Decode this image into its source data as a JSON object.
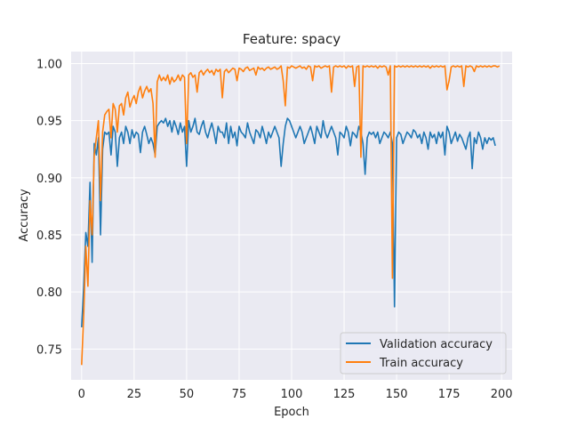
{
  "chart_data": {
    "type": "line",
    "title": "Feature: spacy",
    "xlabel": "Epoch",
    "ylabel": "Accuracy",
    "xlim": [
      -5,
      205
    ],
    "ylim": [
      0.723,
      1.0105
    ],
    "x_ticks": [
      0,
      25,
      50,
      75,
      100,
      125,
      150,
      175,
      200
    ],
    "y_ticks": [
      0.75,
      0.8,
      0.85,
      0.9,
      0.95,
      1.0
    ],
    "x_tick_labels": [
      "0",
      "25",
      "50",
      "75",
      "100",
      "125",
      "150",
      "175",
      "200"
    ],
    "y_tick_labels": [
      "0.75",
      "0.80",
      "0.85",
      "0.90",
      "0.95",
      "1.00"
    ],
    "grid": true,
    "background": "#eaeaf2",
    "legend_position": "lower-right",
    "series": [
      {
        "name": "Validation accuracy",
        "color": "#1f77b4",
        "y": [
          0.769,
          0.805,
          0.852,
          0.84,
          0.896,
          0.826,
          0.93,
          0.92,
          0.935,
          0.85,
          0.925,
          0.94,
          0.938,
          0.94,
          0.92,
          0.945,
          0.94,
          0.91,
          0.935,
          0.94,
          0.93,
          0.945,
          0.94,
          0.93,
          0.942,
          0.935,
          0.94,
          0.938,
          0.922,
          0.94,
          0.945,
          0.938,
          0.93,
          0.935,
          0.93,
          0.92,
          0.945,
          0.948,
          0.95,
          0.948,
          0.952,
          0.945,
          0.95,
          0.94,
          0.95,
          0.945,
          0.938,
          0.948,
          0.94,
          0.945,
          0.91,
          0.95,
          0.94,
          0.945,
          0.952,
          0.94,
          0.938,
          0.945,
          0.95,
          0.94,
          0.935,
          0.942,
          0.948,
          0.94,
          0.93,
          0.945,
          0.94,
          0.94,
          0.935,
          0.948,
          0.93,
          0.945,
          0.935,
          0.94,
          0.928,
          0.945,
          0.94,
          0.938,
          0.935,
          0.948,
          0.94,
          0.935,
          0.93,
          0.942,
          0.94,
          0.935,
          0.945,
          0.938,
          0.93,
          0.94,
          0.935,
          0.94,
          0.945,
          0.94,
          0.935,
          0.91,
          0.93,
          0.945,
          0.952,
          0.95,
          0.945,
          0.94,
          0.935,
          0.94,
          0.945,
          0.94,
          0.93,
          0.935,
          0.94,
          0.945,
          0.938,
          0.93,
          0.945,
          0.94,
          0.935,
          0.95,
          0.94,
          0.935,
          0.94,
          0.945,
          0.94,
          0.935,
          0.92,
          0.94,
          0.938,
          0.935,
          0.945,
          0.94,
          0.928,
          0.94,
          0.938,
          0.935,
          0.945,
          0.94,
          0.93,
          0.903,
          0.935,
          0.94,
          0.938,
          0.94,
          0.935,
          0.94,
          0.93,
          0.935,
          0.94,
          0.938,
          0.935,
          0.94,
          0.93,
          0.787,
          0.935,
          0.94,
          0.938,
          0.93,
          0.935,
          0.94,
          0.938,
          0.935,
          0.942,
          0.94,
          0.935,
          0.938,
          0.93,
          0.94,
          0.935,
          0.925,
          0.94,
          0.935,
          0.938,
          0.93,
          0.94,
          0.935,
          0.94,
          0.92,
          0.945,
          0.94,
          0.93,
          0.935,
          0.94,
          0.932,
          0.938,
          0.935,
          0.93,
          0.925,
          0.935,
          0.94,
          0.908,
          0.935,
          0.93,
          0.94,
          0.935,
          0.925,
          0.935,
          0.93,
          0.935,
          0.933,
          0.935,
          0.928
        ]
      },
      {
        "name": "Train accuracy",
        "color": "#ff7f0e",
        "y": [
          0.736,
          0.78,
          0.84,
          0.805,
          0.88,
          0.85,
          0.92,
          0.935,
          0.95,
          0.88,
          0.94,
          0.955,
          0.958,
          0.96,
          0.935,
          0.965,
          0.96,
          0.94,
          0.963,
          0.965,
          0.955,
          0.97,
          0.975,
          0.962,
          0.968,
          0.972,
          0.965,
          0.975,
          0.98,
          0.97,
          0.976,
          0.98,
          0.975,
          0.978,
          0.965,
          0.918,
          0.984,
          0.99,
          0.985,
          0.988,
          0.985,
          0.99,
          0.982,
          0.988,
          0.984,
          0.986,
          0.99,
          0.985,
          0.99,
          0.988,
          0.93,
          0.99,
          0.992,
          0.988,
          0.99,
          0.975,
          0.992,
          0.994,
          0.99,
          0.993,
          0.995,
          0.992,
          0.994,
          0.99,
          0.995,
          0.993,
          0.995,
          0.97,
          0.993,
          0.995,
          0.992,
          0.994,
          0.996,
          0.995,
          0.985,
          0.996,
          0.995,
          0.993,
          0.996,
          0.997,
          0.994,
          0.995,
          0.996,
          0.99,
          0.997,
          0.995,
          0.996,
          0.994,
          0.996,
          0.997,
          0.995,
          0.996,
          0.997,
          0.995,
          0.996,
          0.998,
          0.985,
          0.963,
          0.997,
          0.996,
          0.998,
          0.997,
          0.996,
          0.997,
          0.998,
          0.996,
          0.997,
          0.995,
          0.998,
          0.997,
          0.985,
          0.998,
          0.997,
          0.998,
          0.996,
          0.997,
          0.998,
          0.997,
          0.998,
          0.975,
          0.997,
          0.998,
          0.997,
          0.998,
          0.997,
          0.998,
          0.996,
          0.998,
          0.997,
          0.998,
          0.98,
          0.997,
          0.998,
          0.918,
          0.998,
          0.997,
          0.998,
          0.997,
          0.998,
          0.997,
          0.998,
          0.996,
          0.998,
          0.997,
          0.998,
          0.997,
          0.99,
          0.998,
          0.812,
          0.998,
          0.997,
          0.998,
          0.997,
          0.998,
          0.997,
          0.998,
          0.997,
          0.998,
          0.997,
          0.998,
          0.997,
          0.998,
          0.997,
          0.998,
          0.997,
          0.998,
          0.996,
          0.998,
          0.997,
          0.998,
          0.997,
          0.998,
          0.997,
          0.998,
          0.977,
          0.985,
          0.997,
          0.998,
          0.997,
          0.998,
          0.997,
          0.998,
          0.98,
          0.998,
          0.997,
          0.998,
          0.997,
          0.993,
          0.998,
          0.997,
          0.998,
          0.997,
          0.998,
          0.997,
          0.998,
          0.997,
          0.998,
          0.998,
          0.997,
          0.998
        ]
      }
    ]
  }
}
